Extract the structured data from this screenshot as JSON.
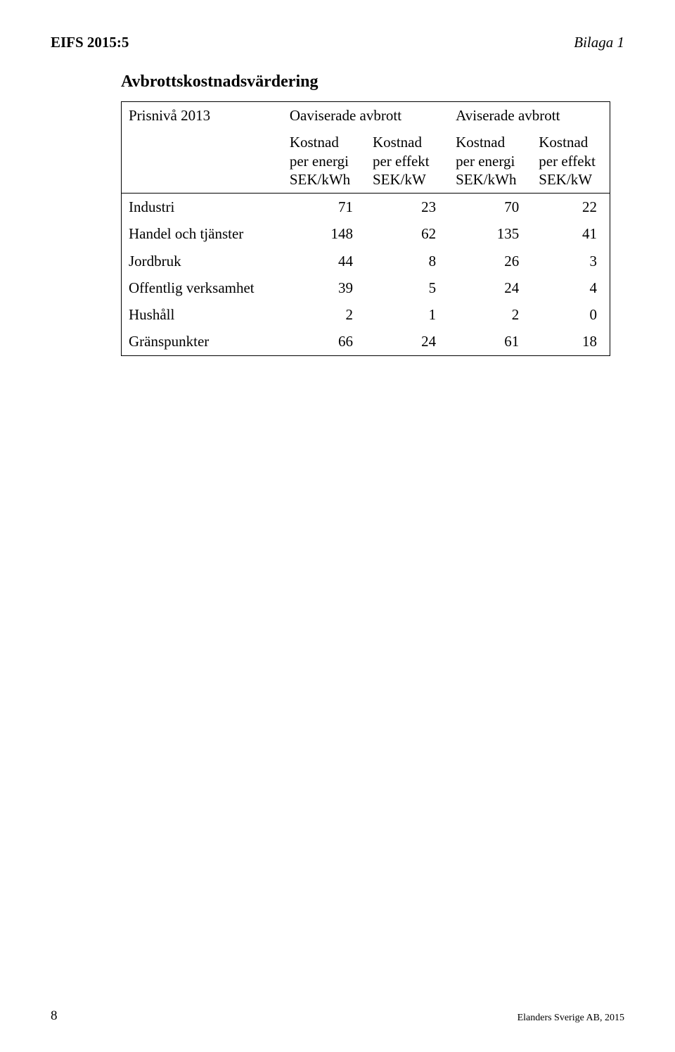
{
  "header": {
    "doc_id": "EIFS 2015:5",
    "bilaga": "Bilaga 1"
  },
  "section_title": "Avbrottskostnadsvärdering",
  "table": {
    "top_header": {
      "col1": "Prisnivå 2013",
      "col2": "Oaviserade avbrott",
      "col3": "Aviserade avbrott"
    },
    "sub_headers": [
      [
        "Kostnad",
        "per energi",
        "SEK/kWh"
      ],
      [
        "Kostnad",
        "per effekt",
        "SEK/kW"
      ],
      [
        "Kostnad",
        "per energi",
        "SEK/kWh"
      ],
      [
        "Kostnad",
        "per effekt",
        "SEK/kW"
      ]
    ],
    "rows": [
      {
        "label": "Industri",
        "vals": [
          71,
          23,
          70,
          22
        ]
      },
      {
        "label": "Handel och tjänster",
        "vals": [
          148,
          62,
          135,
          41
        ]
      },
      {
        "label": "Jordbruk",
        "vals": [
          44,
          8,
          26,
          3
        ]
      },
      {
        "label": "Offentlig verksamhet",
        "vals": [
          39,
          5,
          24,
          4
        ]
      },
      {
        "label": "Hushåll",
        "vals": [
          2,
          1,
          2,
          0
        ]
      },
      {
        "label": "Gränspunkter",
        "vals": [
          66,
          24,
          61,
          18
        ]
      }
    ]
  },
  "footer": {
    "page_number": "8",
    "publisher": "Elanders Sverige AB, 2015"
  },
  "colors": {
    "text": "#000000",
    "background": "#ffffff",
    "border": "#000000"
  }
}
